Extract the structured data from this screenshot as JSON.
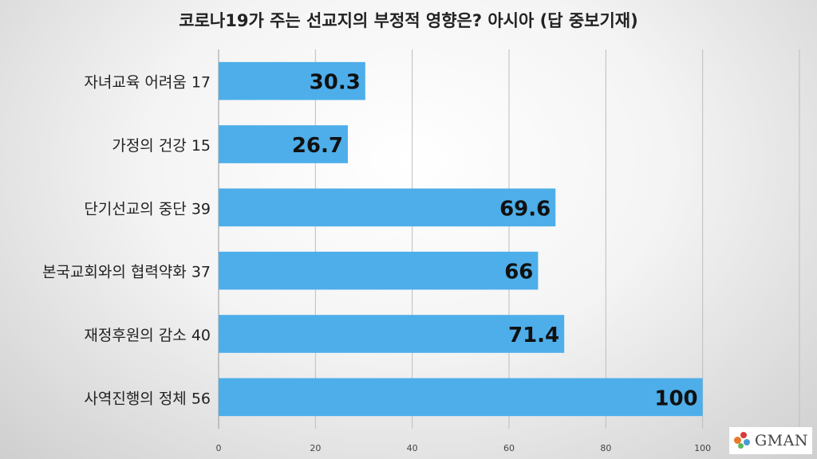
{
  "title": "코로나19가 주는 선교지의 부정적 영향은? 아시아 (답 중보기재)",
  "logo": {
    "text": "GMAN"
  },
  "colors": {
    "bar": "#4daeea",
    "grid": "#bdbdbd",
    "label": "#111111"
  },
  "chart_data": {
    "type": "bar",
    "orientation": "horizontal",
    "categories": [
      "자녀교육 어려움 17",
      "가정의 건강 15",
      "단기선교의 중단 39",
      "본국교회와의 협력약화 37",
      "재정후원의 감소 40",
      "사역진행의 정체 56"
    ],
    "values": [
      30.3,
      26.7,
      69.6,
      66,
      71.4,
      100
    ],
    "value_labels": [
      "30.3",
      "26.7",
      "69.6",
      "66",
      "71.4",
      "100"
    ],
    "xlim": [
      0,
      120
    ],
    "xticks": [
      0,
      20,
      40,
      60,
      80,
      100
    ],
    "grid": true,
    "legend": "none"
  }
}
